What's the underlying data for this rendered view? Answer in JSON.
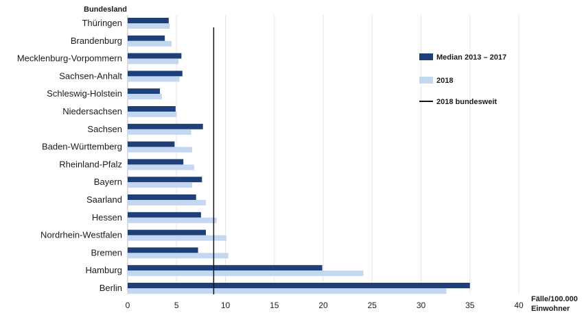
{
  "chart_data": {
    "type": "bar",
    "orientation": "horizontal",
    "categories": [
      "Thüringen",
      "Brandenburg",
      "Mecklenburg-Vorpommern",
      "Sachsen-Anhalt",
      "Schleswig-Holstein",
      "Niedersachsen",
      "Sachsen",
      "Baden-Württemberg",
      "Rheinland-Pfalz",
      "Bayern",
      "Saarland",
      "Hessen",
      "Nordrhein-Westfalen",
      "Bremen",
      "Hamburg",
      "Berlin"
    ],
    "series": [
      {
        "name": "Median 2013 – 2017",
        "color": "#1e3f78",
        "values": [
          4.2,
          3.8,
          5.5,
          5.6,
          3.3,
          4.9,
          7.7,
          4.8,
          5.7,
          7.6,
          7.0,
          7.5,
          8.0,
          7.2,
          19.9,
          35.0
        ]
      },
      {
        "name": "2018",
        "color": "#c3d7f0",
        "values": [
          4.3,
          4.5,
          5.2,
          5.3,
          3.5,
          5.0,
          6.5,
          6.6,
          6.8,
          6.6,
          8.0,
          9.1,
          10.1,
          10.3,
          24.1,
          32.6
        ]
      }
    ],
    "reference_line": {
      "name": "2018 bundesweit",
      "value": 8.8,
      "color": "#111111"
    },
    "ylabel": "Bundesland",
    "xlabel_line1": "Fälle/100.000",
    "xlabel_line2": "Einwohner",
    "xlim": [
      0,
      40
    ],
    "xticks": [
      "0",
      "5",
      "10",
      "15",
      "20",
      "25",
      "30",
      "35",
      "40"
    ],
    "grid": "vertical",
    "legend_position": "right"
  }
}
